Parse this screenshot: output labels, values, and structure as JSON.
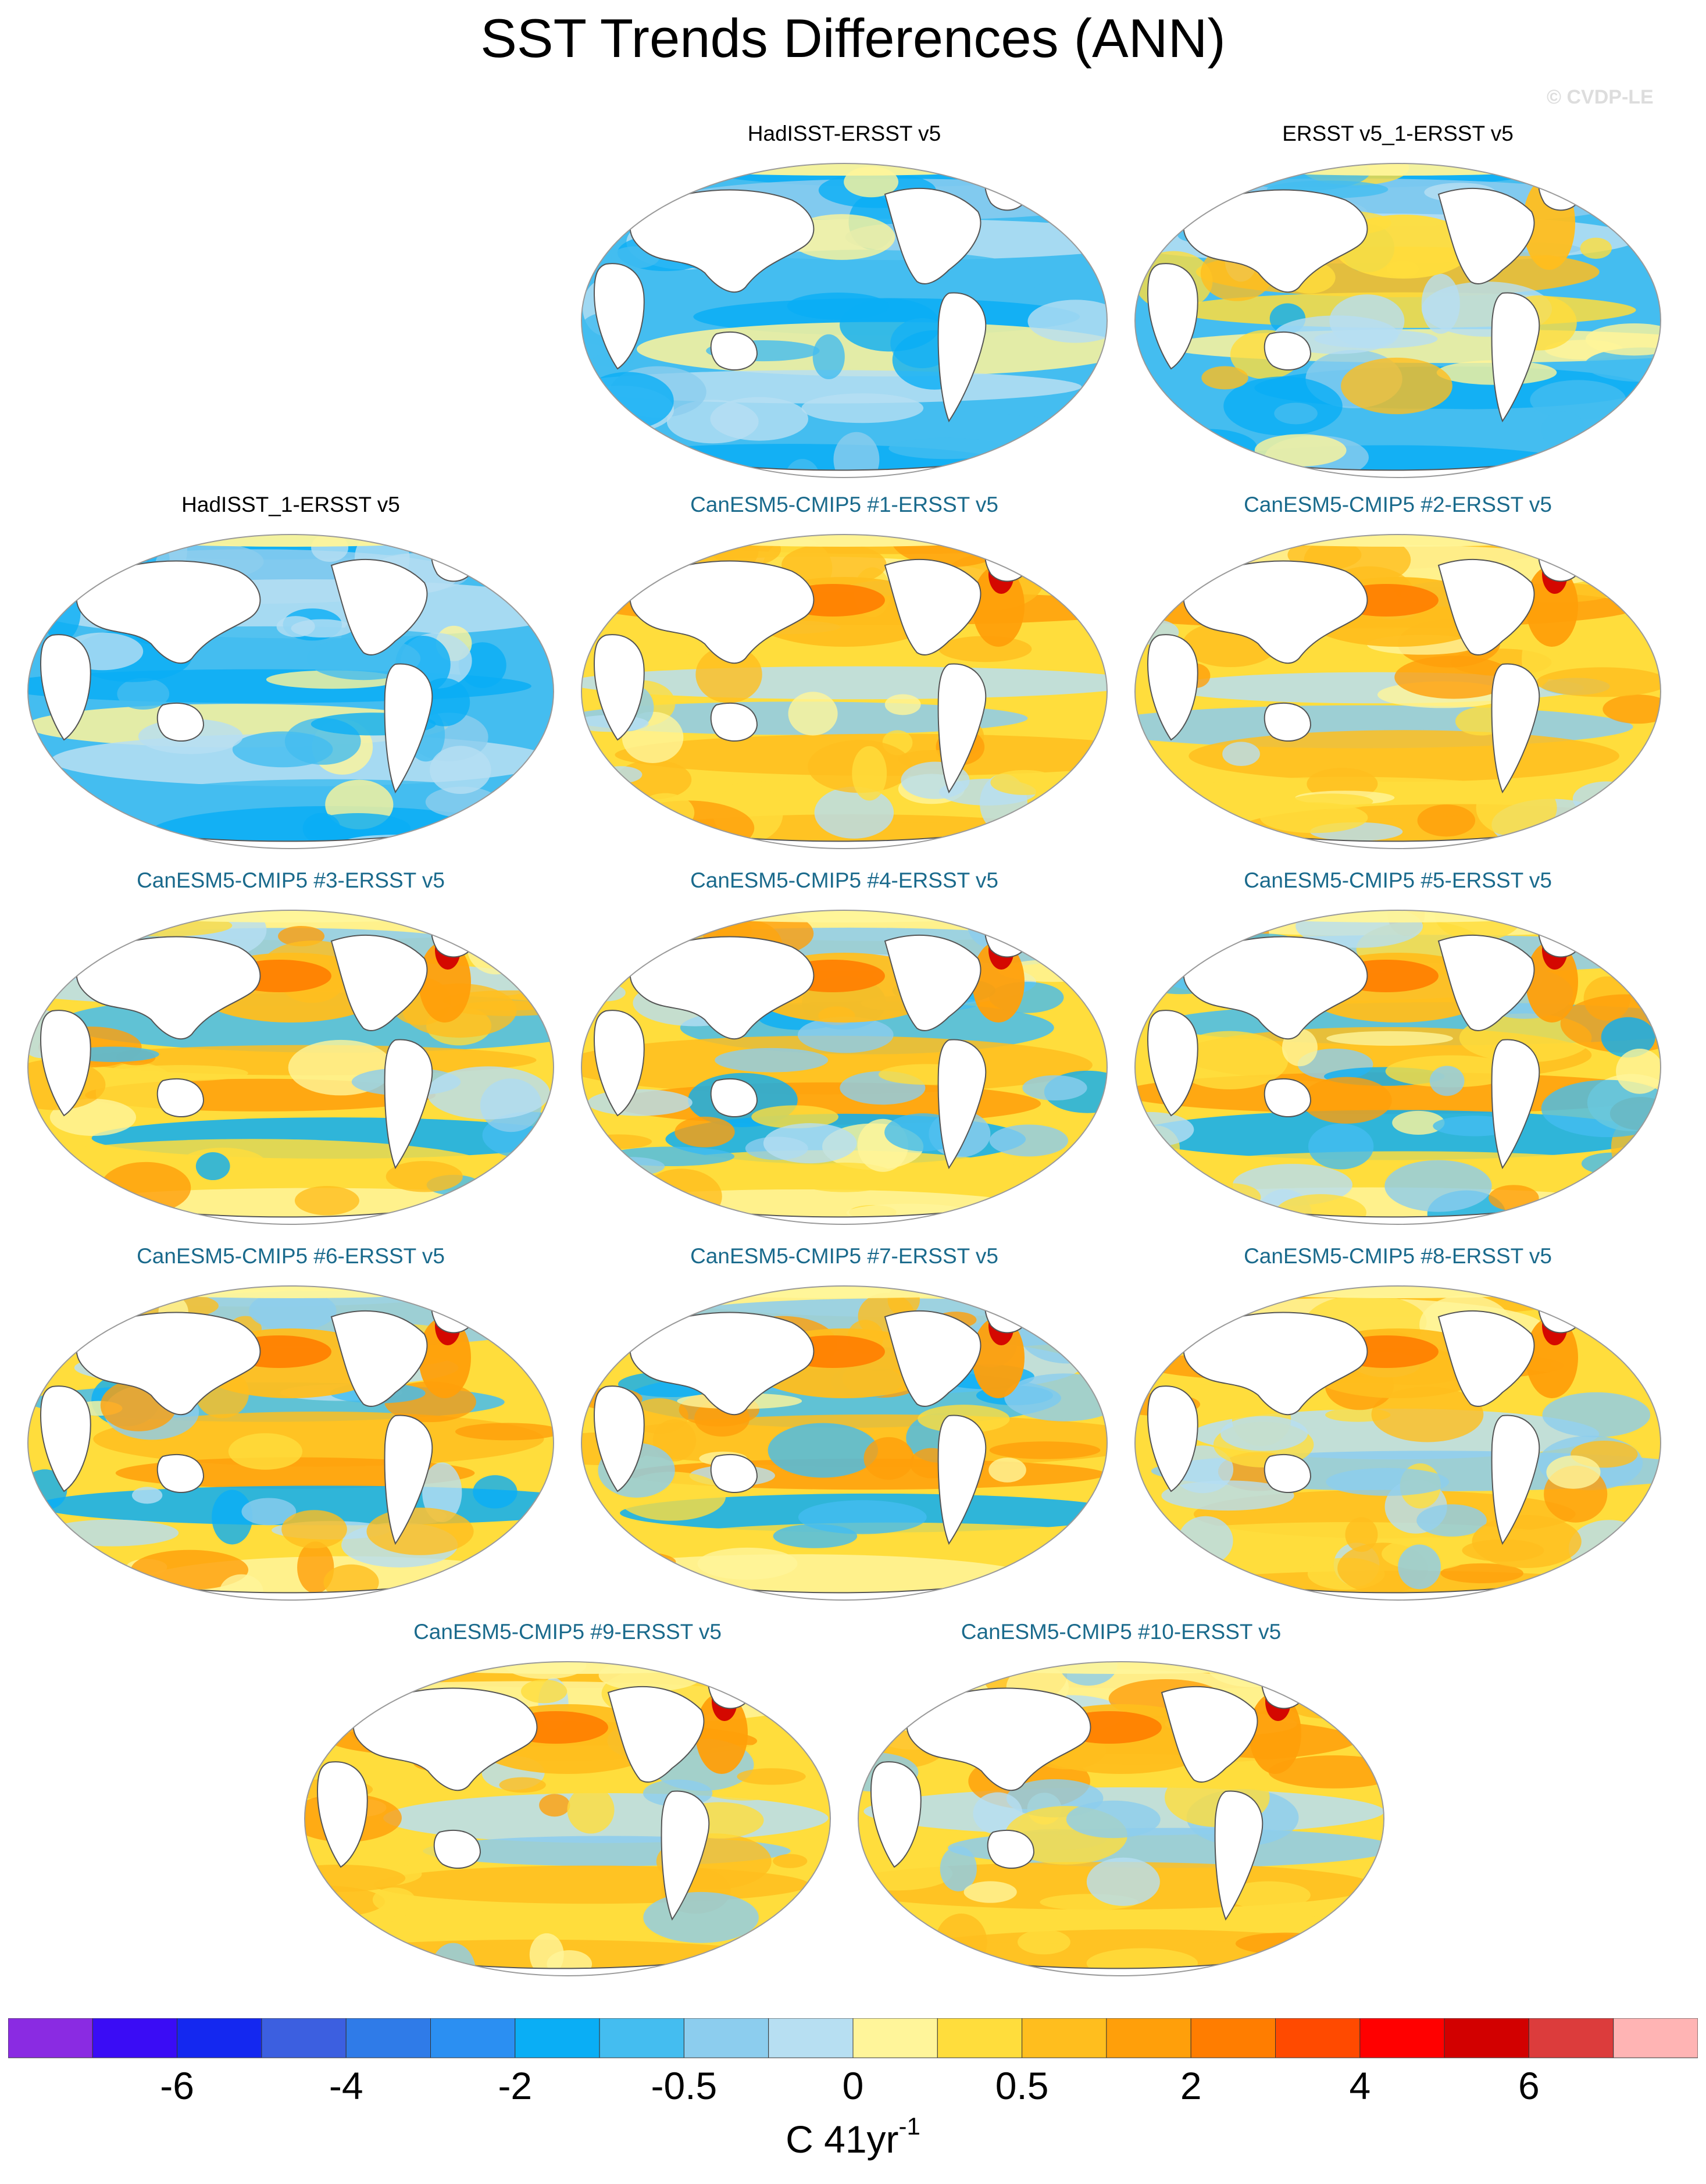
{
  "figure": {
    "title": "SST Trends Differences (ANN)",
    "credit": "© CVDP-LE"
  },
  "panels": [
    {
      "id": "hadisst",
      "title": "HadISST-ERSST v5",
      "kind": "obs",
      "pattern": "cool",
      "seed": 3
    },
    {
      "id": "ersst-1",
      "title": "ERSST v5_1-ERSST v5",
      "kind": "obs",
      "pattern": "cool-warm-north",
      "seed": 7
    },
    {
      "id": "hadisst-1",
      "title": "HadISST_1-ERSST v5",
      "kind": "obs",
      "pattern": "cool",
      "seed": 11
    },
    {
      "id": "m1",
      "title": "CanESM5-CMIP5 #1-ERSST v5",
      "kind": "model",
      "pattern": "warm",
      "seed": 13
    },
    {
      "id": "m2",
      "title": "CanESM5-CMIP5 #2-ERSST v5",
      "kind": "model",
      "pattern": "warm",
      "seed": 17
    },
    {
      "id": "m3",
      "title": "CanESM5-CMIP5 #3-ERSST v5",
      "kind": "model",
      "pattern": "mixed",
      "seed": 19
    },
    {
      "id": "m4",
      "title": "CanESM5-CMIP5 #4-ERSST v5",
      "kind": "model",
      "pattern": "mixed",
      "seed": 23
    },
    {
      "id": "m5",
      "title": "CanESM5-CMIP5 #5-ERSST v5",
      "kind": "model",
      "pattern": "mixed",
      "seed": 29
    },
    {
      "id": "m6",
      "title": "CanESM5-CMIP5 #6-ERSST v5",
      "kind": "model",
      "pattern": "mixed",
      "seed": 31
    },
    {
      "id": "m7",
      "title": "CanESM5-CMIP5 #7-ERSST v5",
      "kind": "model",
      "pattern": "mixed",
      "seed": 37
    },
    {
      "id": "m8",
      "title": "CanESM5-CMIP5 #8-ERSST v5",
      "kind": "model",
      "pattern": "warm",
      "seed": 41
    },
    {
      "id": "m9",
      "title": "CanESM5-CMIP5 #9-ERSST v5",
      "kind": "model",
      "pattern": "warm",
      "seed": 43
    },
    {
      "id": "m10",
      "title": "CanESM5-CMIP5 #10-ERSST v5",
      "kind": "model",
      "pattern": "warm",
      "seed": 47
    }
  ],
  "colorbar": {
    "colors": [
      "#8a2be2",
      "#3a0cf5",
      "#1428f0",
      "#3c5fe0",
      "#2f7be8",
      "#2b8ff2",
      "#0aaef5",
      "#44bdf0",
      "#8ccdee",
      "#b7dff2",
      "#fff59a",
      "#ffdd3c",
      "#ffbe1e",
      "#ff9f0a",
      "#ff7d00",
      "#ff4a00",
      "#ff0000",
      "#d20000",
      "#dc3c3c",
      "#ffb4b4"
    ],
    "tick_labels": [
      "-6",
      "-4",
      "-2",
      "-0.5",
      "0",
      "0.5",
      "2",
      "4",
      "6"
    ],
    "units_base": "C 41yr",
    "units_exp": "-1"
  },
  "colors": {
    "obs_title": "#000000",
    "model_title": "#1a6a8c",
    "land": "#ffffff",
    "coast": "#555555"
  }
}
